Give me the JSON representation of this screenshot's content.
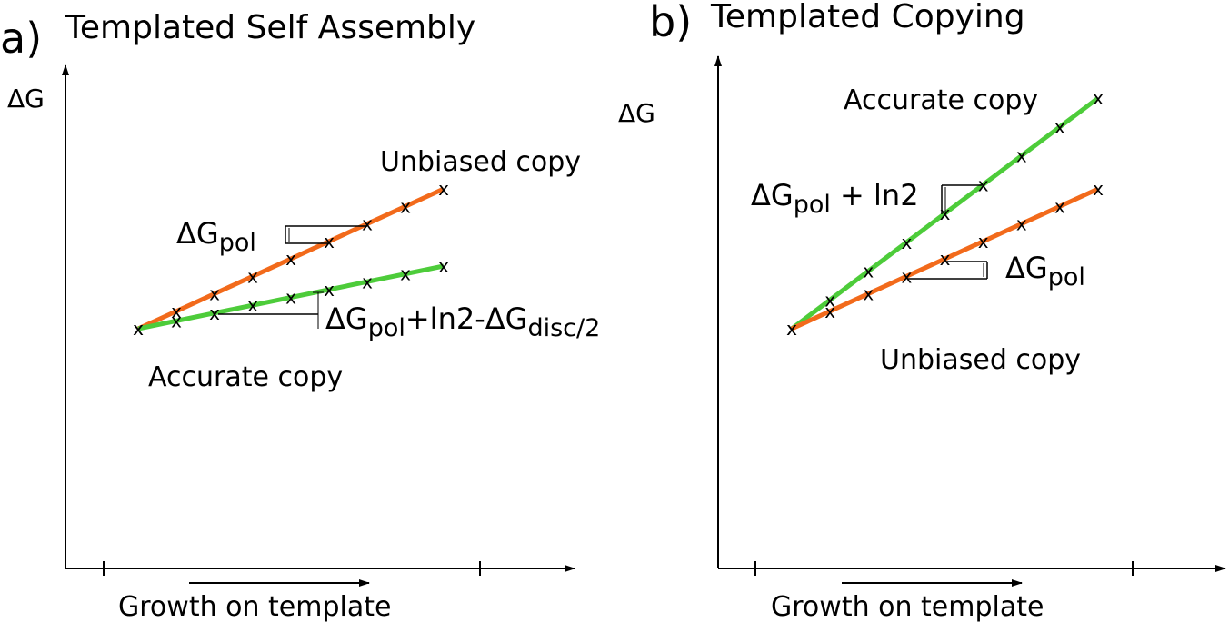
{
  "panel_a": {
    "letter": "a)",
    "title": "Templated Self Assembly",
    "y_label": "ΔG",
    "x_label": "Growth on template",
    "top_line_label": "Unbiased copy",
    "bottom_line_label": "Accurate copy",
    "step_label": {
      "main": "ΔG",
      "sub": "pol"
    },
    "gap_label": {
      "a": "ΔG",
      "a_sub": "pol",
      "mid": "+ln2-ΔG",
      "b_sub": "disc/2"
    },
    "top_line_color": "#f26a1b",
    "bottom_line_color": "#4dcc3a"
  },
  "panel_b": {
    "letter": "b)",
    "title": "Templated Copying",
    "y_label": "ΔG",
    "x_label": "Growth on template",
    "top_line_label": "Accurate copy",
    "bottom_line_label": "Unbiased copy",
    "step_label_top": {
      "main": "ΔG",
      "sub": "pol",
      "tail": " + ln2"
    },
    "step_label_bottom": {
      "main": "ΔG",
      "sub": "pol"
    },
    "top_line_color": "#4dcc3a",
    "bottom_line_color": "#f26a1b"
  },
  "marker": "x"
}
